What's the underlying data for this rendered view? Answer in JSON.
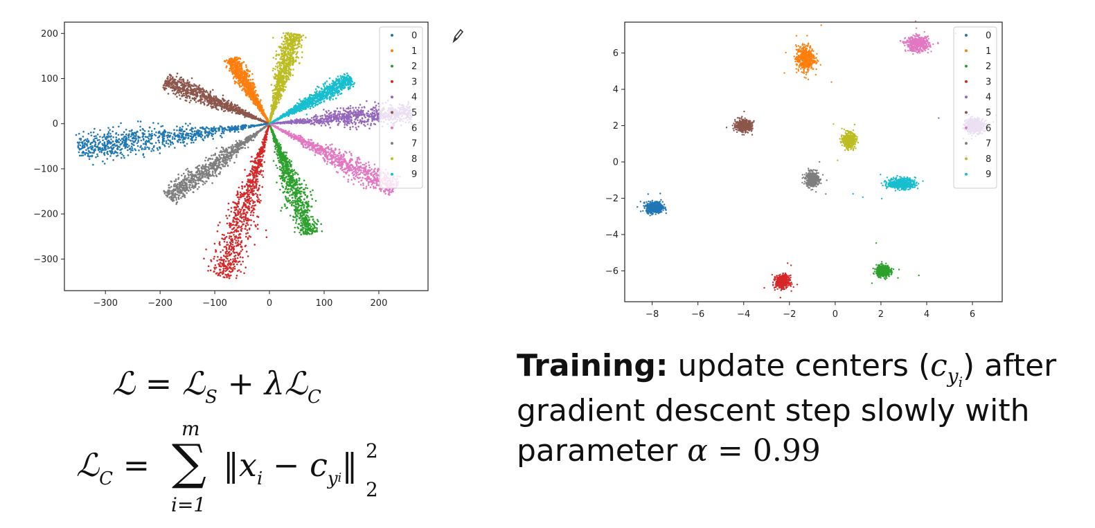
{
  "chart_data": [
    {
      "type": "scatter",
      "title": "",
      "xlabel": "",
      "ylabel": "",
      "xlim": [
        -375,
        290
      ],
      "ylim": [
        -370,
        225
      ],
      "xticks": [
        -300,
        -200,
        -100,
        0,
        100,
        200
      ],
      "xtick_labels": [
        "−300",
        "−200",
        "−100",
        "0",
        "100",
        "200"
      ],
      "yticks": [
        200,
        100,
        0,
        -100,
        -200,
        -300
      ],
      "ytick_labels": [
        "200",
        "100",
        "0",
        "−100",
        "−200",
        "−300"
      ],
      "grid": false,
      "legend_position": "top-right",
      "series": [
        {
          "name": "0",
          "color": "#1f77b4",
          "center": [
            -175,
            -30
          ],
          "tip": [
            -350,
            -55
          ]
        },
        {
          "name": "1",
          "color": "#ff7f0e",
          "center": [
            -40,
            80
          ],
          "tip": [
            -70,
            145
          ]
        },
        {
          "name": "2",
          "color": "#2ca02c",
          "center": [
            40,
            -110
          ],
          "tip": [
            75,
            -245
          ]
        },
        {
          "name": "3",
          "color": "#d62728",
          "center": [
            -40,
            -170
          ],
          "tip": [
            -85,
            -340
          ]
        },
        {
          "name": "4",
          "color": "#9467bd",
          "center": [
            130,
            15
          ],
          "tip": [
            260,
            25
          ]
        },
        {
          "name": "5",
          "color": "#8c564b",
          "center": [
            -90,
            45
          ],
          "tip": [
            -190,
            95
          ]
        },
        {
          "name": "6",
          "color": "#e377c2",
          "center": [
            105,
            -70
          ],
          "tip": [
            230,
            -145
          ]
        },
        {
          "name": "7",
          "color": "#7f7f7f",
          "center": [
            -80,
            -75
          ],
          "tip": [
            -185,
            -165
          ]
        },
        {
          "name": "8",
          "color": "#bcbd22",
          "center": [
            35,
            115
          ],
          "tip": [
            45,
            200
          ]
        },
        {
          "name": "9",
          "color": "#17becf",
          "center": [
            80,
            50
          ],
          "tip": [
            150,
            100
          ]
        }
      ]
    },
    {
      "type": "scatter",
      "title": "",
      "xlabel": "",
      "ylabel": "",
      "xlim": [
        -9.2,
        7.3
      ],
      "ylim": [
        -7.7,
        7.7
      ],
      "xticks": [
        -8,
        -6,
        -4,
        -2,
        0,
        2,
        4,
        6
      ],
      "xtick_labels": [
        "−8",
        "−6",
        "−4",
        "−2",
        "0",
        "2",
        "4",
        "6"
      ],
      "yticks": [
        6,
        4,
        2,
        0,
        -2,
        -4,
        -6
      ],
      "ytick_labels": [
        "6",
        "4",
        "2",
        "0",
        "−2",
        "−4",
        "−6"
      ],
      "grid": false,
      "legend_position": "top-right",
      "series": [
        {
          "name": "0",
          "color": "#1f77b4",
          "center": [
            -7.9,
            -2.5
          ],
          "spread": [
            0.18,
            0.15
          ]
        },
        {
          "name": "1",
          "color": "#ff7f0e",
          "center": [
            -1.3,
            5.7
          ],
          "spread": [
            0.2,
            0.35
          ]
        },
        {
          "name": "2",
          "color": "#2ca02c",
          "center": [
            2.1,
            -6.0
          ],
          "spread": [
            0.15,
            0.15
          ]
        },
        {
          "name": "3",
          "color": "#d62728",
          "center": [
            -2.3,
            -6.6
          ],
          "spread": [
            0.15,
            0.17
          ]
        },
        {
          "name": "4",
          "color": "#9467bd",
          "center": [
            6.1,
            2.0
          ],
          "spread": [
            0.2,
            0.2
          ]
        },
        {
          "name": "5",
          "color": "#8c564b",
          "center": [
            -4.0,
            2.0
          ],
          "spread": [
            0.18,
            0.15
          ]
        },
        {
          "name": "6",
          "color": "#e377c2",
          "center": [
            3.6,
            6.5
          ],
          "spread": [
            0.25,
            0.2
          ]
        },
        {
          "name": "7",
          "color": "#7f7f7f",
          "center": [
            -1.0,
            -0.95
          ],
          "spread": [
            0.14,
            0.2
          ]
        },
        {
          "name": "8",
          "color": "#bcbd22",
          "center": [
            0.6,
            1.2
          ],
          "spread": [
            0.13,
            0.2
          ]
        },
        {
          "name": "9",
          "color": "#17becf",
          "center": [
            2.9,
            -1.2
          ],
          "spread": [
            0.3,
            0.15
          ]
        }
      ]
    }
  ],
  "equations": {
    "line1": {
      "lhs": "ℒ",
      "eq": "=",
      "t1": "ℒ",
      "t1_sub": "S",
      "plus": "+",
      "lambda": "λ",
      "t2": "ℒ",
      "t2_sub": "C"
    },
    "line2": {
      "lhs": "ℒ",
      "lhs_sub": "C",
      "eq": "=",
      "sum": "∑",
      "sum_upper": "m",
      "sum_lower": "i=1",
      "norm_open": "‖",
      "x": "x",
      "x_sub": "i",
      "minus": "−",
      "c": "c",
      "c_sub": "y",
      "c_subsub": "i",
      "norm_close": "‖",
      "exp": "2",
      "norm_sub": "2"
    }
  },
  "training": {
    "bold": "Training:",
    "text1": " update centers (",
    "c": "c",
    "c_sub": "y",
    "c_subsub": "i",
    "text2": ") after gradient descent step slowly with parameter ",
    "alpha": "α",
    "eq": " = ",
    "value": "0.99"
  },
  "icons": {
    "pen": "pen-icon"
  }
}
